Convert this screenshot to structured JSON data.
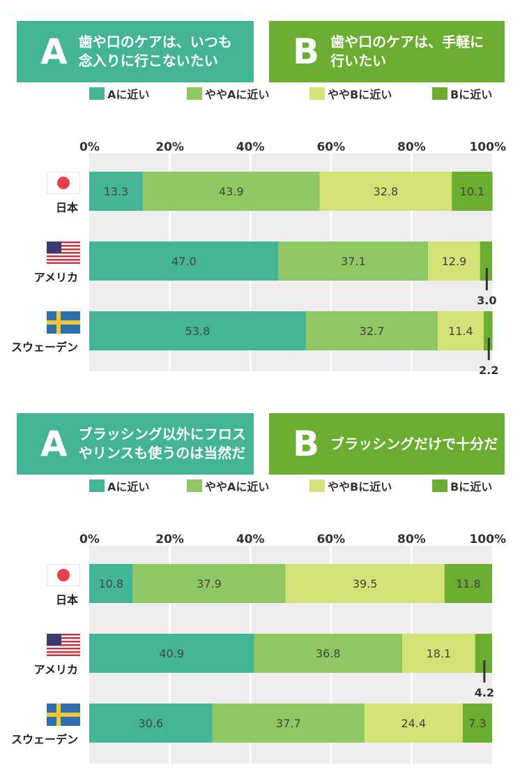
{
  "colors": {
    "a": "#43b596",
    "slightly_a": "#8fc863",
    "slightly_b": "#d4e276",
    "b": "#6aad30",
    "banner_a": "#43b596",
    "banner_b": "#6aad30",
    "plot_bg": "#ededed"
  },
  "legend": [
    "Aに近い",
    "ややAに近い",
    "ややBに近い",
    "Bに近い"
  ],
  "countries": [
    "日本",
    "アメリカ",
    "スウェーデン"
  ],
  "section1": {
    "banner_a_letter": "A",
    "banner_a_text": "歯や口のケアは、いつも\n念入りに行こないたい",
    "banner_b_letter": "B",
    "banner_b_text": "歯や口のケアは、手軽に\n行いたい"
  },
  "section2": {
    "banner_a_letter": "A",
    "banner_a_text": "ブラッシング以外にフロス\nやリンスも使うのは当然だ",
    "banner_b_letter": "B",
    "banner_b_text": "ブラッシングだけで十分だ"
  },
  "chart_data": [
    {
      "type": "bar",
      "stacked": true,
      "orientation": "horizontal",
      "categories": [
        "日本",
        "アメリカ",
        "スウェーデン"
      ],
      "x_ticks": [
        "0%",
        "20%",
        "40%",
        "60%",
        "80%",
        "100%"
      ],
      "xlim": [
        0,
        100
      ],
      "series": [
        {
          "name": "Aに近い",
          "values": [
            13.3,
            47.0,
            53.8
          ]
        },
        {
          "name": "ややAに近い",
          "values": [
            43.9,
            37.1,
            32.7
          ]
        },
        {
          "name": "ややBに近い",
          "values": [
            32.8,
            12.9,
            11.4
          ]
        },
        {
          "name": "Bに近い",
          "values": [
            10.1,
            3.0,
            2.2
          ]
        }
      ],
      "labels": [
        [
          "13.3",
          "43.9",
          "32.8",
          "10.1"
        ],
        [
          "47.0",
          "37.1",
          "12.9",
          "3.0"
        ],
        [
          "53.8",
          "32.7",
          "11.4",
          "2.2"
        ]
      ]
    },
    {
      "type": "bar",
      "stacked": true,
      "orientation": "horizontal",
      "categories": [
        "日本",
        "アメリカ",
        "スウェーデン"
      ],
      "x_ticks": [
        "0%",
        "20%",
        "40%",
        "60%",
        "80%",
        "100%"
      ],
      "xlim": [
        0,
        100
      ],
      "series": [
        {
          "name": "Aに近い",
          "values": [
            10.8,
            40.9,
            30.6
          ]
        },
        {
          "name": "ややAに近い",
          "values": [
            37.9,
            36.8,
            37.7
          ]
        },
        {
          "name": "ややBに近い",
          "values": [
            39.5,
            18.1,
            24.4
          ]
        },
        {
          "name": "Bに近い",
          "values": [
            11.8,
            4.2,
            7.3
          ]
        }
      ],
      "labels": [
        [
          "10.8",
          "37.9",
          "39.5",
          "11.8"
        ],
        [
          "40.9",
          "36.8",
          "18.1",
          "4.2"
        ],
        [
          "30.6",
          "37.7",
          "24.4",
          "7.3"
        ]
      ]
    }
  ]
}
